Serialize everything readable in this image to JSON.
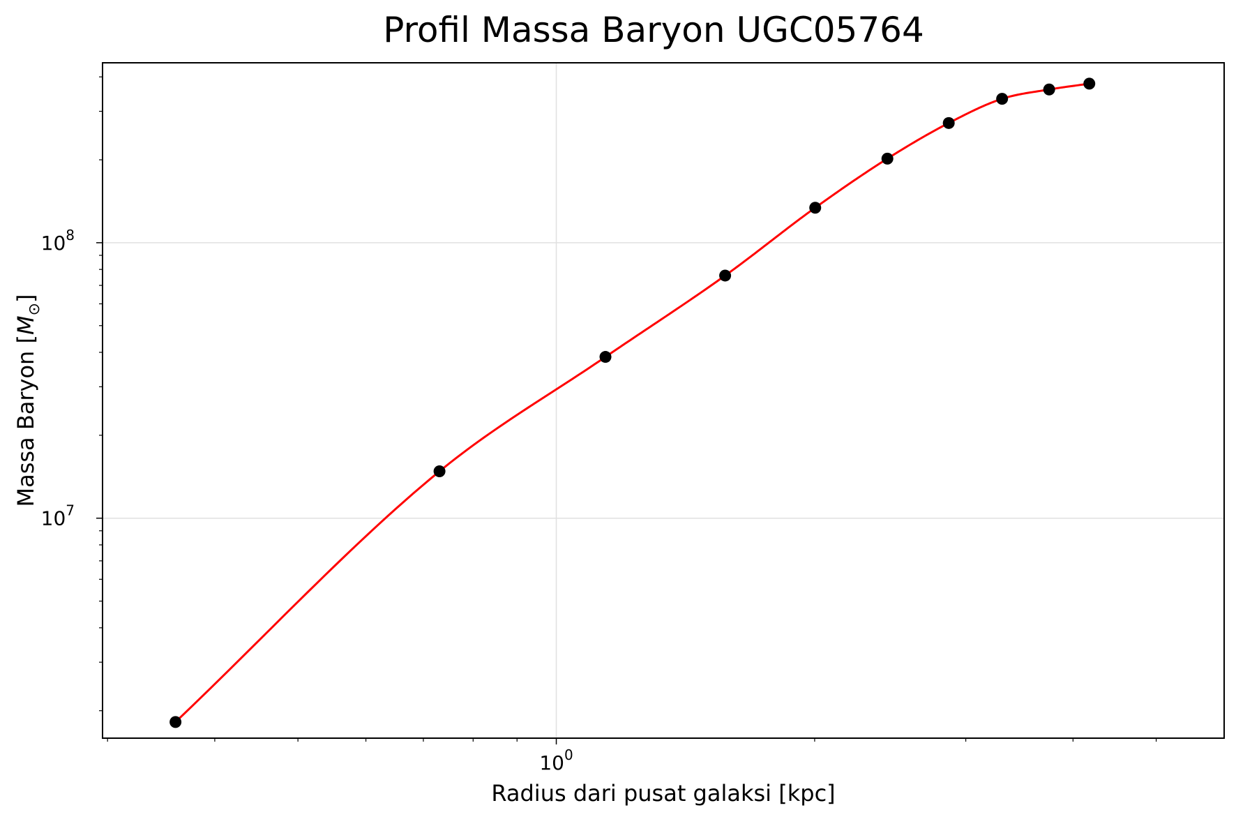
{
  "chart_data": {
    "type": "line",
    "title": "Profil Massa Baryon UGC05764",
    "xlabel": "Radius dari pusat galaksi [kpc]",
    "ylabel": "Massa Baryon [",
    "ylabel_symbol": "M",
    "ylabel_subscript": "⊙",
    "ylabel_close": "]",
    "x_scale": "log",
    "y_scale": "log",
    "xlim": [
      0.296,
      6.0
    ],
    "ylim": [
      1590000.0,
      450000000.0
    ],
    "grid": true,
    "x_major_ticks": [
      {
        "value": 1,
        "base": "10",
        "exp": "0"
      }
    ],
    "y_major_ticks": [
      {
        "value": 10000000,
        "base": "10",
        "exp": "7"
      },
      {
        "value": 100000000,
        "base": "10",
        "exp": "8"
      }
    ],
    "colors": {
      "points": "#000000",
      "fit_line": "#ff0000",
      "grid": "#e0e0e0"
    },
    "series": [
      {
        "kind": "scatter",
        "x": [
          0.36,
          0.731,
          1.141,
          1.573,
          2.003,
          2.431,
          2.866,
          3.307,
          3.752,
          4.179
        ],
        "y": [
          1820000.0,
          14800000.0,
          38500000.0,
          76000000.0,
          134000000.0,
          202000000.0,
          272000000.0,
          333000000.0,
          360000000.0,
          378000000.0
        ]
      },
      {
        "kind": "smooth-line",
        "x": [
          0.36,
          0.731,
          1.141,
          1.573,
          2.003,
          2.431,
          2.866,
          3.307,
          3.752,
          4.179
        ],
        "y": [
          1820000.0,
          14800000.0,
          38500000.0,
          76000000.0,
          134000000.0,
          202000000.0,
          272000000.0,
          333000000.0,
          360000000.0,
          378000000.0
        ]
      }
    ]
  }
}
